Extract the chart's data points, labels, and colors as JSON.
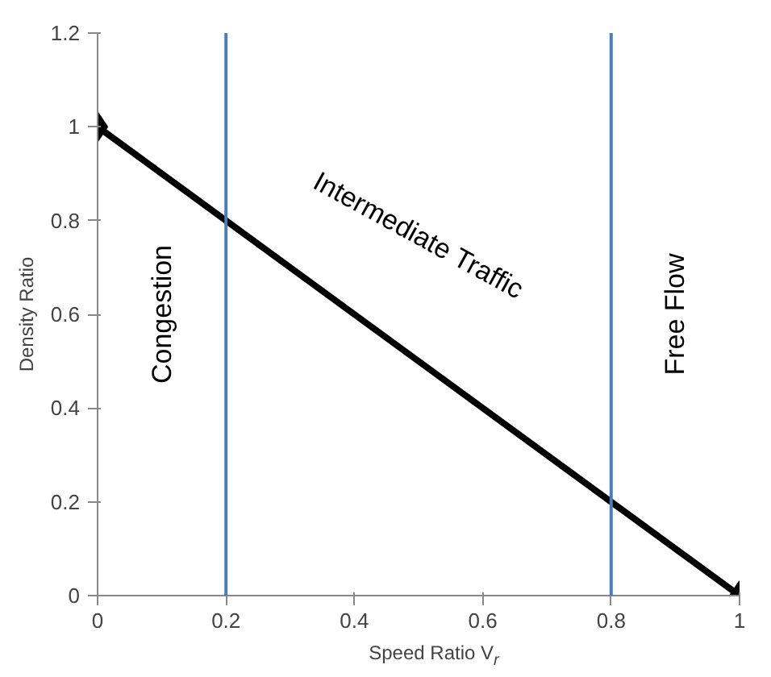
{
  "chart_data": {
    "type": "line",
    "xlabel": "Speed Ratio V$_{r}$",
    "ylabel": "Density Ratio",
    "x": [
      0,
      1
    ],
    "series": [
      {
        "color": "#000000",
        "values": [
          1,
          0
        ]
      }
    ],
    "marker": "diamond",
    "line_style": "solid",
    "grid": false,
    "xlim": [
      0,
      1
    ],
    "ylim": [
      0,
      1.2
    ],
    "xticks": [
      0,
      0.2,
      0.4,
      0.6,
      0.8,
      1
    ],
    "yticks": [
      0,
      0.2,
      0.4,
      0.6,
      0.8,
      1,
      1.2
    ],
    "ref_lines": [
      {
        "axis": "x",
        "value": 0.2,
        "color": "#4a7ebb"
      },
      {
        "axis": "x",
        "value": 0.8,
        "color": "#4a7ebb"
      }
    ],
    "annotations": [
      "Congestion",
      "Intermediate Traffic",
      "Free Flow"
    ]
  }
}
